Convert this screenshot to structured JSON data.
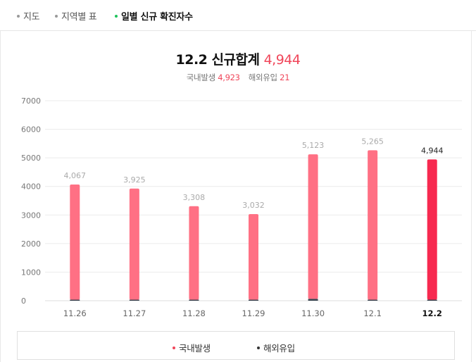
{
  "tabs": [
    {
      "label": "지도",
      "active": false
    },
    {
      "label": "지역별 표",
      "active": false
    },
    {
      "label": "일별 신규 확진자수",
      "active": true
    }
  ],
  "headline": {
    "date": "12.2",
    "title": "신규합계",
    "total": "4,944"
  },
  "subline": {
    "domestic_label": "국내발생",
    "domestic_value": "4,923",
    "imported_label": "해외유입",
    "imported_value": "21"
  },
  "legend": [
    {
      "label": "국내발생",
      "color": "#f0465a"
    },
    {
      "label": "해외유입",
      "color": "#333333"
    }
  ],
  "colors": {
    "bar": "#ff7084",
    "bar_current": "#f7294f",
    "imported": "#3c4652",
    "gridline": "#ebebeb",
    "accent": "#f0465a",
    "active_dot": "#1ec35b"
  },
  "chart_data": {
    "type": "bar",
    "stacked": true,
    "categories": [
      "11.26",
      "11.27",
      "11.28",
      "11.29",
      "11.30",
      "12.1",
      "12.2"
    ],
    "labels": [
      "4,067",
      "3,925",
      "3,308",
      "3,032",
      "5,123",
      "5,265",
      "4,944"
    ],
    "totals": [
      4067,
      3925,
      3308,
      3032,
      5123,
      5265,
      4944
    ],
    "current_index": 6,
    "series": [
      {
        "name": "국내발생",
        "values": [
          4032,
          3900,
          3283,
          3006,
          5059,
          5237,
          4923
        ]
      },
      {
        "name": "해외유입",
        "values": [
          35,
          25,
          25,
          26,
          64,
          28,
          21
        ]
      }
    ],
    "yticks": [
      0,
      1000,
      2000,
      3000,
      4000,
      5000,
      6000,
      7000
    ],
    "ylim": [
      0,
      7000
    ],
    "grid": true,
    "legend_position": "bottom"
  }
}
